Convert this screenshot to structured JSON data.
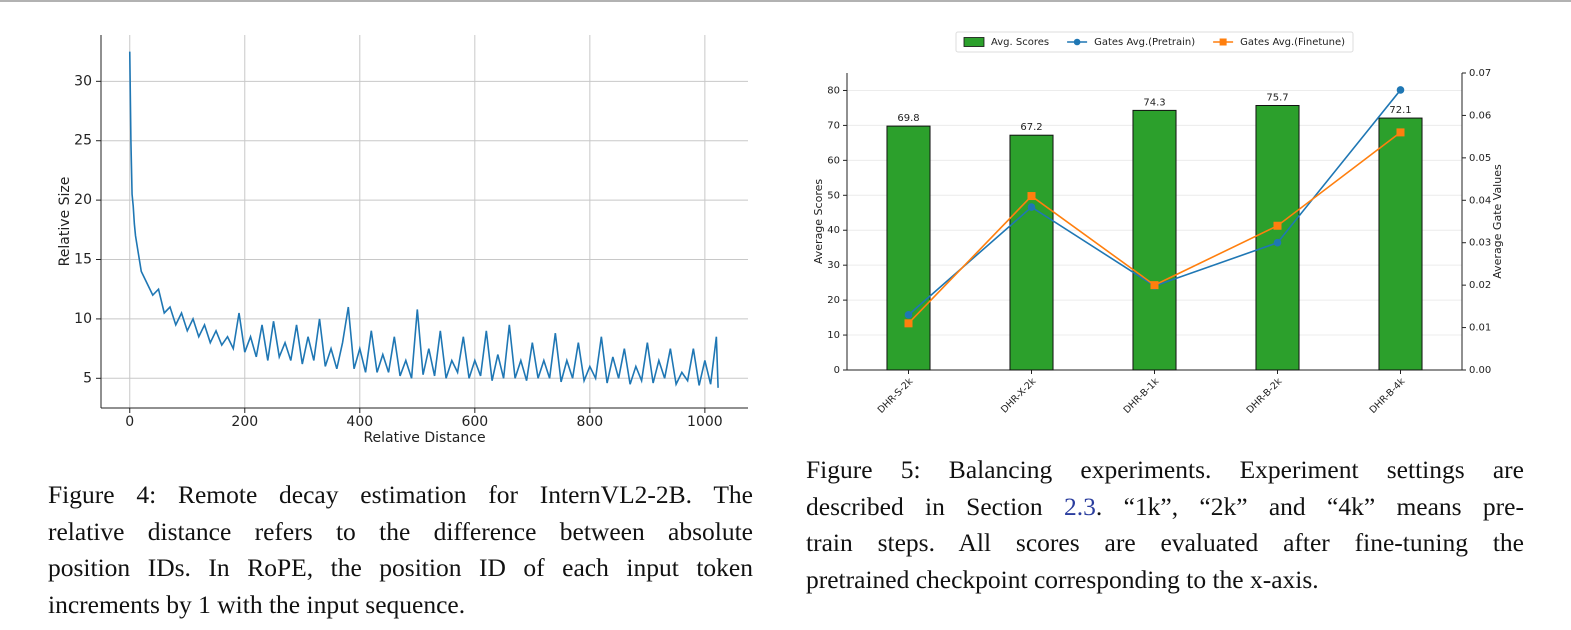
{
  "chart_data": [
    {
      "type": "line",
      "color": "#1f77b4",
      "x": [
        0,
        2,
        4,
        6,
        8,
        10,
        15,
        20,
        30,
        40,
        50,
        60,
        70,
        80,
        90,
        100,
        110,
        120,
        130,
        140,
        150,
        160,
        170,
        180,
        190,
        200,
        210,
        220,
        230,
        240,
        250,
        260,
        270,
        280,
        290,
        300,
        310,
        320,
        330,
        340,
        350,
        360,
        370,
        380,
        390,
        400,
        410,
        420,
        430,
        440,
        450,
        460,
        470,
        480,
        490,
        500,
        510,
        520,
        530,
        540,
        550,
        560,
        570,
        580,
        590,
        600,
        610,
        620,
        630,
        640,
        650,
        660,
        670,
        680,
        690,
        700,
        710,
        720,
        730,
        740,
        750,
        760,
        770,
        780,
        790,
        800,
        810,
        820,
        830,
        840,
        850,
        860,
        870,
        880,
        890,
        900,
        910,
        920,
        930,
        940,
        950,
        960,
        970,
        980,
        990,
        1000,
        1010,
        1020,
        1023
      ],
      "values": [
        32.5,
        25,
        20.5,
        19.5,
        18,
        17,
        15.5,
        14,
        13,
        12,
        12.5,
        10.5,
        11,
        9.5,
        10.5,
        9,
        10,
        8.5,
        9.5,
        8,
        9,
        7.8,
        8.5,
        7.5,
        10.5,
        7.2,
        8.5,
        6.8,
        9.5,
        6.5,
        9.8,
        6.8,
        8,
        6.5,
        9.5,
        6.2,
        8.5,
        6.5,
        10,
        6,
        7.5,
        5.8,
        8,
        11,
        5.8,
        7.5,
        5.5,
        9,
        5.5,
        7,
        5.5,
        8.5,
        5.2,
        6.5,
        5,
        10.8,
        5.3,
        7.5,
        5.2,
        9,
        5,
        6.5,
        5.5,
        8.5,
        5,
        6.5,
        5.2,
        9,
        4.8,
        7,
        5,
        9.5,
        5,
        6.5,
        4.8,
        8,
        5,
        6.5,
        5,
        8.8,
        4.7,
        6.5,
        5,
        8,
        4.8,
        6,
        5,
        8.5,
        4.6,
        6.8,
        5,
        7.5,
        4.5,
        6,
        4.8,
        8,
        4.6,
        6.5,
        5,
        7.5,
        4.5,
        5.5,
        4.8,
        7.5,
        4.4,
        6.5,
        4.5,
        8.5,
        4.2
      ],
      "xlim": [
        -50,
        1075
      ],
      "xticks": [
        0,
        200,
        400,
        600,
        800,
        1000
      ],
      "ylim": [
        2.5,
        33.9
      ],
      "yticks": [
        5,
        10,
        15,
        20,
        25,
        30
      ],
      "xlabel": "Relative Distance",
      "ylabel": "Relative Size",
      "grid": true
    },
    {
      "type": "bar",
      "categories": [
        "DHR-S-2k",
        "DHR-X-2k",
        "DHR-B-1k",
        "DHR-B-2k",
        "DHR-B-4k"
      ],
      "series": [
        {
          "name": "Avg. Scores",
          "type": "bar",
          "color": "#2ca02c",
          "values": [
            69.8,
            67.2,
            74.3,
            75.7,
            72.1
          ]
        },
        {
          "name": "Gates Avg.(Pretrain)",
          "type": "line",
          "marker": "o",
          "color": "#1f77b4",
          "axis": "y2",
          "values": [
            0.013,
            0.0384,
            0.0198,
            0.03,
            0.066
          ]
        },
        {
          "name": "Gates Avg.(Finetune)",
          "type": "line",
          "marker": "s",
          "color": "#ff7f0e",
          "axis": "y2",
          "values": [
            0.011,
            0.041,
            0.02,
            0.034,
            0.056
          ]
        }
      ],
      "ylim": [
        0,
        85
      ],
      "yticks": [
        0,
        10,
        20,
        30,
        40,
        50,
        60,
        70,
        80
      ],
      "y2lim": [
        0,
        0.07
      ],
      "y2ticks": [
        {
          "value": 0,
          "label": "0.00"
        },
        {
          "value": 0.01,
          "label": "0.01"
        },
        {
          "value": 0.02,
          "label": "0.02"
        },
        {
          "value": 0.03,
          "label": "0.03"
        },
        {
          "value": 0.04,
          "label": "0.04"
        },
        {
          "value": 0.05,
          "label": "0.05"
        },
        {
          "value": 0.06,
          "label": "0.06"
        },
        {
          "value": 0.07,
          "label": "0.07"
        }
      ],
      "ylabel": "Average Scores",
      "y2label": "Average Gate Values",
      "legend": "top",
      "grid": true
    }
  ],
  "captions": [
    {
      "lines": [
        "Figure 4: Remote decay estimation for InternVL2-2B. The",
        "relative distance refers to the difference between absolute",
        "position IDs. In RoPE, the position ID of each input token",
        "increments by 1 with the input sequence."
      ]
    },
    {
      "line1": "Figure 5: Balancing experiments. Experiment settings are",
      "line2_pre": "described in Section ",
      "line2_link": "2.3",
      "line2_post": ". “1k”, “2k” and “4k” means pre-",
      "line3": "train steps.  All scores are evaluated after fine-tuning the",
      "line4": "pretrained checkpoint corresponding to the x-axis."
    }
  ]
}
